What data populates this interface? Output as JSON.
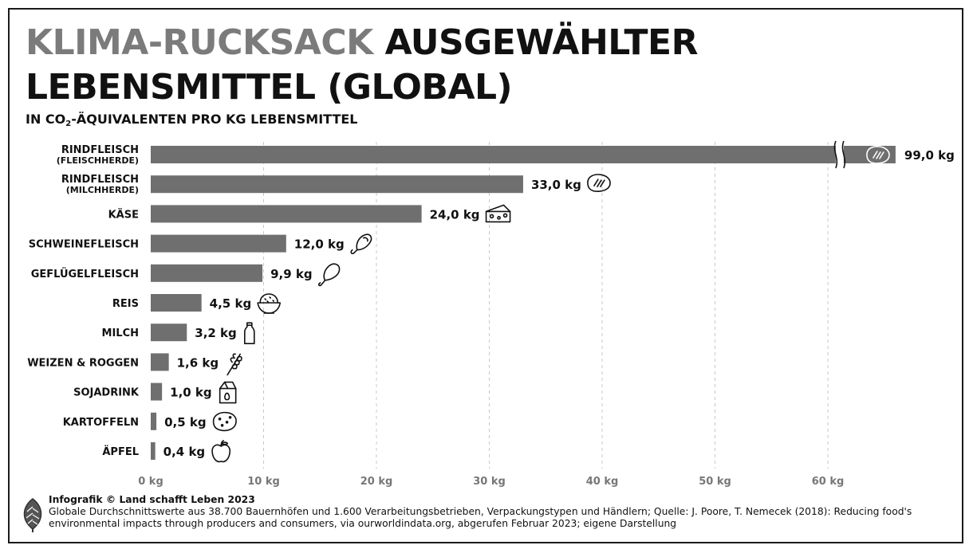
{
  "title": {
    "grey_part": "KLIMA-RUCKSACK",
    "black_part": "AUSGEWÄHLTER",
    "line2": "LEBENSMITTEL (GLOBAL)"
  },
  "subtitle": {
    "prefix": "IN CO",
    "subscript": "2",
    "suffix": "-ÄQUIVALENTEN PRO KG LEBENSMITTEL"
  },
  "chart_data": {
    "type": "bar",
    "orientation": "horizontal",
    "title": "KLIMA-RUCKSACK AUSGEWÄHLTER LEBENSMITTEL (GLOBAL)",
    "subtitle": "IN CO2-ÄQUIVALENTEN PRO KG LEBENSMITTEL",
    "unit": "kg",
    "xlim": [
      0,
      66
    ],
    "axis_break": true,
    "grid": true,
    "ticks": [
      0,
      10,
      20,
      30,
      40,
      50,
      60
    ],
    "tick_labels": [
      "0 kg",
      "10 kg",
      "20 kg",
      "30 kg",
      "40 kg",
      "50 kg",
      "60 kg"
    ],
    "categories": [
      {
        "name": "RINDFLEISCH",
        "sub": "(FLEISCHHERDE)"
      },
      {
        "name": "RINDFLEISCH",
        "sub": "(MILCHHERDE)"
      },
      {
        "name": "KÄSE",
        "sub": ""
      },
      {
        "name": "SCHWEINEFLEISCH",
        "sub": ""
      },
      {
        "name": "GEFLÜGELFLEISCH",
        "sub": ""
      },
      {
        "name": "REIS",
        "sub": ""
      },
      {
        "name": "MILCH",
        "sub": ""
      },
      {
        "name": "WEIZEN & ROGGEN",
        "sub": ""
      },
      {
        "name": "SOJADRINK",
        "sub": ""
      },
      {
        "name": "KARTOFFELN",
        "sub": ""
      },
      {
        "name": "ÄPFEL",
        "sub": ""
      }
    ],
    "values": [
      99.0,
      33.0,
      24.0,
      12.0,
      9.9,
      4.5,
      3.2,
      1.6,
      1.0,
      0.5,
      0.4
    ],
    "value_labels": [
      "99,0 kg",
      "33,0 kg",
      "24,0 kg",
      "12,0 kg",
      "9,9 kg",
      "4,5 kg",
      "3,2 kg",
      "1,6 kg",
      "1,0 kg",
      "0,5 kg",
      "0,4 kg"
    ],
    "icons": [
      "steak-icon",
      "steak-icon",
      "cheese-icon",
      "ham-icon",
      "drumstick-icon",
      "rice-bowl-icon",
      "milk-bottle-icon",
      "wheat-icon",
      "milk-carton-icon",
      "potato-icon",
      "apple-icon"
    ]
  },
  "colors": {
    "bar": "#6f6f6f",
    "grid": "#c8c8c8",
    "tick": "#777777",
    "text": "#111111"
  },
  "footer": {
    "credit": "Infografik © Land schafft Leben 2023",
    "source": "Globale Durchschnittswerte aus 38.700 Bauernhöfen und 1.600 Verarbeitungsbetrieben, Verpackungstypen und Händlern; Quelle: J. Poore, T. Nemecek (2018): Reducing food's environmental impacts through producers and consumers, via ourworldindata.org, abgerufen Februar 2023; eigene Darstellung"
  }
}
